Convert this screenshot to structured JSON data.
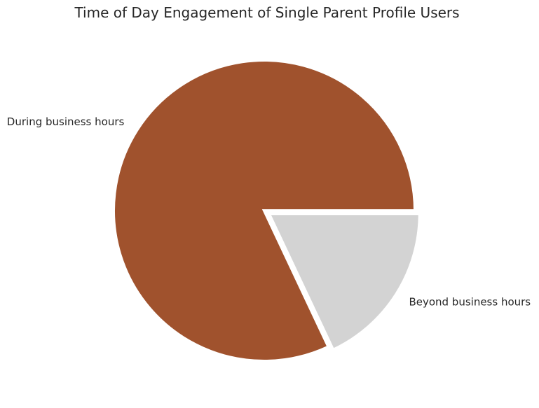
{
  "chart_data": {
    "type": "pie",
    "title": "Time of Day Engagement of Single Parent Profile Users",
    "slices": [
      {
        "label": "During business hours",
        "value": 82,
        "color": "#A0522D",
        "exploded": false
      },
      {
        "label": "Beyond business hours",
        "value": 18,
        "color": "#D3D3D3",
        "exploded": true
      }
    ],
    "start_angle": "3 o'clock, counter-clockwise",
    "legend": "none",
    "data_labels": false
  }
}
